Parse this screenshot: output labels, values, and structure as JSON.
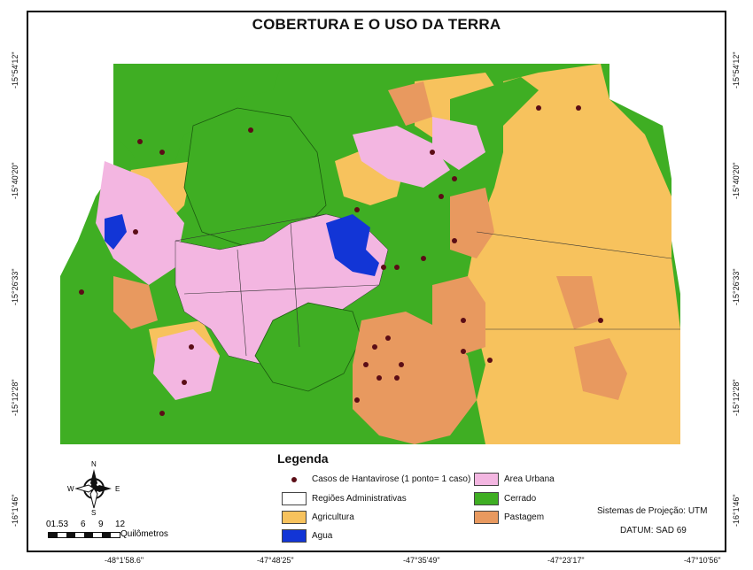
{
  "title": "COBERTURA E O USO DA TERRA",
  "legend": {
    "title": "Legenda",
    "items": [
      {
        "label": "Casos de Hantavirose (1 ponto= 1 caso)",
        "kind": "point",
        "color": "#5b0d16"
      },
      {
        "label": "Regiões Administrativas",
        "kind": "outline",
        "color": "#ffffff"
      },
      {
        "label": "Agricultura",
        "kind": "fill",
        "color": "#f7c25d"
      },
      {
        "label": "Agua",
        "kind": "fill",
        "color": "#1235d6"
      },
      {
        "label": "Area Urbana",
        "kind": "fill",
        "color": "#f3b6e1"
      },
      {
        "label": "Cerrado",
        "kind": "fill",
        "color": "#3fae23"
      },
      {
        "label": "Pastagem",
        "kind": "fill",
        "color": "#e8995f"
      }
    ]
  },
  "projection": "Sistemas de Projeção: UTM",
  "datum": "DATUM: SAD 69",
  "compass": {
    "n": "N",
    "s": "S",
    "e": "E",
    "w": "W"
  },
  "scale": {
    "ticks": [
      "01.53",
      "6",
      "9",
      "12"
    ],
    "unit": "Quilômetros"
  },
  "axes": {
    "bottom": [
      "-48°1'58.6\"",
      "-47°48'25\"",
      "-47°35'49\"",
      "-47°23'17\"",
      "-47°10'56\""
    ],
    "left": [
      "-15°54'12\"",
      "-15°40'20\"",
      "-15°26'33\"",
      "-15°12'28\"",
      "-16°1'46\""
    ],
    "right": [
      "-15°54'12\"",
      "-15°40'20\"",
      "-15°26'33\"",
      "-15°12'28\"",
      "-16°1'46\""
    ]
  },
  "map_colors": {
    "agriculture": "#f7c25d",
    "urban": "#f3b6e1",
    "cerrado": "#3fae23",
    "pasture": "#e8995f",
    "water": "#1235d6",
    "case_point": "#5b0d16"
  }
}
